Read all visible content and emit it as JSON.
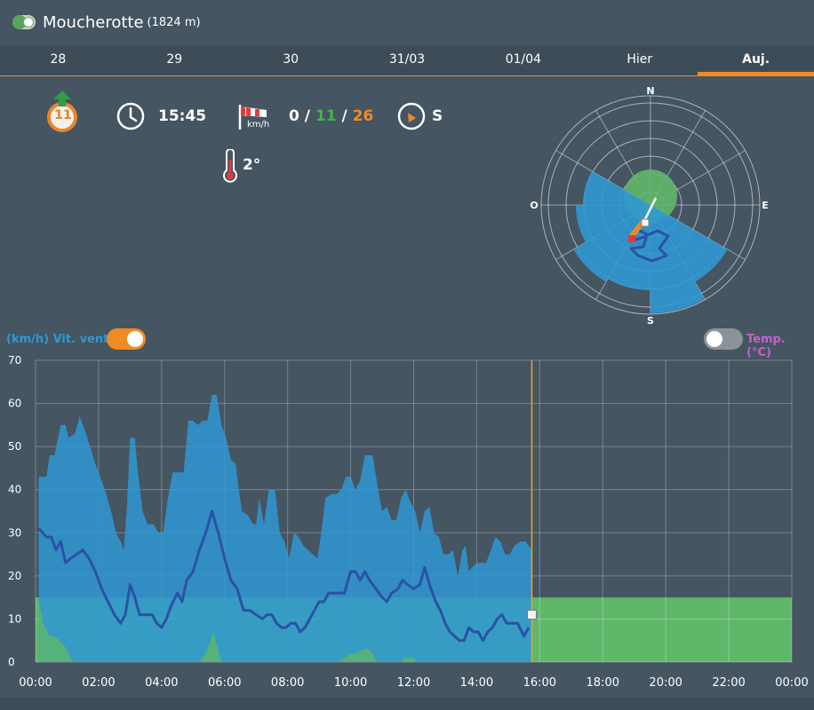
{
  "header": {
    "station_name": "Moucherotte",
    "altitude": "(1824 m)"
  },
  "tabs": [
    {
      "label": "28"
    },
    {
      "label": "29"
    },
    {
      "label": "30"
    },
    {
      "label": "31/03"
    },
    {
      "label": "01/04"
    },
    {
      "label": "Hier"
    },
    {
      "label": "Auj."
    }
  ],
  "active_tab": 6,
  "info": {
    "badge_value": "11",
    "time": "15:45",
    "wind_unit": "km/h",
    "wind_min": "0",
    "wind_sep1": "/",
    "wind_avg": "11",
    "wind_sep2": "/",
    "wind_max": "26",
    "direction": "S",
    "temperature": "2°"
  },
  "rose": {
    "n": "N",
    "e": "E",
    "s": "S",
    "o": "O"
  },
  "toggles": {
    "wind_label": "(km/h) Vit. vent",
    "wind_on": true,
    "temp_label": "Temp. (°C)",
    "temp_on": false
  },
  "colors": {
    "wind": "#2f98d3",
    "avg_line": "#2a52a6",
    "zone": "#5fb76a",
    "now": "#f0a030",
    "bg": "#455561"
  },
  "chart_data": {
    "type": "area",
    "ylim": [
      0,
      70
    ],
    "yticks": [
      "0",
      "10",
      "20",
      "30",
      "40",
      "50",
      "60",
      "70"
    ],
    "xlim": [
      0,
      24
    ],
    "xticks": [
      "00:00",
      "02:00",
      "04:00",
      "06:00",
      "08:00",
      "10:00",
      "12:00",
      "14:00",
      "16:00",
      "18:00",
      "20:00",
      "22:00",
      "00:00"
    ],
    "now_hour": 15.75,
    "green_band": [
      0,
      15
    ],
    "max_series": [
      [
        0.1,
        43
      ],
      [
        0.35,
        43
      ],
      [
        0.45,
        48
      ],
      [
        0.6,
        48
      ],
      [
        0.8,
        55
      ],
      [
        0.95,
        55
      ],
      [
        1.05,
        52
      ],
      [
        1.25,
        53
      ],
      [
        1.4,
        57
      ],
      [
        1.6,
        53
      ],
      [
        1.9,
        46
      ],
      [
        2.2,
        40
      ],
      [
        2.4,
        35
      ],
      [
        2.55,
        30
      ],
      [
        2.7,
        28
      ],
      [
        2.8,
        26
      ],
      [
        2.9,
        36
      ],
      [
        3.0,
        52
      ],
      [
        3.15,
        52
      ],
      [
        3.25,
        44
      ],
      [
        3.4,
        35
      ],
      [
        3.55,
        32
      ],
      [
        3.75,
        32
      ],
      [
        3.9,
        30
      ],
      [
        4.05,
        30
      ],
      [
        4.2,
        38
      ],
      [
        4.35,
        44
      ],
      [
        4.5,
        44
      ],
      [
        4.7,
        44
      ],
      [
        4.85,
        56
      ],
      [
        5.0,
        56
      ],
      [
        5.15,
        55
      ],
      [
        5.3,
        56
      ],
      [
        5.45,
        56
      ],
      [
        5.6,
        62
      ],
      [
        5.75,
        62
      ],
      [
        5.9,
        55
      ],
      [
        6.05,
        52
      ],
      [
        6.2,
        47
      ],
      [
        6.35,
        46
      ],
      [
        6.45,
        40
      ],
      [
        6.55,
        35
      ],
      [
        6.75,
        34
      ],
      [
        6.9,
        32
      ],
      [
        7.0,
        32
      ],
      [
        7.1,
        38
      ],
      [
        7.25,
        32
      ],
      [
        7.4,
        40
      ],
      [
        7.6,
        40
      ],
      [
        7.75,
        30
      ],
      [
        7.9,
        28
      ],
      [
        8.05,
        24
      ],
      [
        8.2,
        30
      ],
      [
        8.35,
        29
      ],
      [
        8.5,
        27
      ],
      [
        8.65,
        26
      ],
      [
        8.8,
        25
      ],
      [
        8.95,
        24
      ],
      [
        9.1,
        32
      ],
      [
        9.2,
        38
      ],
      [
        9.4,
        39
      ],
      [
        9.55,
        39
      ],
      [
        9.7,
        40
      ],
      [
        9.85,
        43
      ],
      [
        10.0,
        43
      ],
      [
        10.15,
        40
      ],
      [
        10.3,
        42
      ],
      [
        10.45,
        48
      ],
      [
        10.7,
        48
      ],
      [
        10.85,
        41
      ],
      [
        11.0,
        35
      ],
      [
        11.15,
        36
      ],
      [
        11.3,
        33
      ],
      [
        11.45,
        33
      ],
      [
        11.6,
        38
      ],
      [
        11.75,
        40
      ],
      [
        11.9,
        37
      ],
      [
        12.05,
        35
      ],
      [
        12.2,
        30
      ],
      [
        12.35,
        35
      ],
      [
        12.5,
        36
      ],
      [
        12.65,
        30
      ],
      [
        12.8,
        29
      ],
      [
        12.95,
        25
      ],
      [
        13.1,
        25
      ],
      [
        13.25,
        26
      ],
      [
        13.4,
        20
      ],
      [
        13.55,
        26
      ],
      [
        13.65,
        27
      ],
      [
        13.75,
        21
      ],
      [
        13.85,
        22
      ],
      [
        14.0,
        23
      ],
      [
        14.15,
        23
      ],
      [
        14.3,
        23
      ],
      [
        14.45,
        26
      ],
      [
        14.6,
        29
      ],
      [
        14.75,
        28
      ],
      [
        14.9,
        25
      ],
      [
        15.05,
        25
      ],
      [
        15.2,
        27
      ],
      [
        15.4,
        28
      ],
      [
        15.55,
        28
      ],
      [
        15.75,
        26
      ]
    ],
    "avg_series": [
      [
        0.1,
        31
      ],
      [
        0.35,
        29
      ],
      [
        0.5,
        29
      ],
      [
        0.65,
        26
      ],
      [
        0.8,
        28
      ],
      [
        0.95,
        23
      ],
      [
        1.1,
        24
      ],
      [
        1.3,
        25
      ],
      [
        1.5,
        26
      ],
      [
        1.7,
        24
      ],
      [
        1.9,
        21
      ],
      [
        2.1,
        17
      ],
      [
        2.3,
        14
      ],
      [
        2.5,
        11
      ],
      [
        2.7,
        9
      ],
      [
        2.85,
        11
      ],
      [
        3.0,
        18
      ],
      [
        3.15,
        15
      ],
      [
        3.3,
        11
      ],
      [
        3.5,
        11
      ],
      [
        3.7,
        11
      ],
      [
        3.85,
        9
      ],
      [
        4.0,
        8
      ],
      [
        4.15,
        10
      ],
      [
        4.3,
        13
      ],
      [
        4.5,
        16
      ],
      [
        4.65,
        14
      ],
      [
        4.8,
        19
      ],
      [
        5.0,
        21
      ],
      [
        5.2,
        26
      ],
      [
        5.4,
        30
      ],
      [
        5.6,
        35
      ],
      [
        5.8,
        30
      ],
      [
        6.0,
        24
      ],
      [
        6.2,
        19
      ],
      [
        6.4,
        17
      ],
      [
        6.6,
        12
      ],
      [
        6.8,
        12
      ],
      [
        7.0,
        11
      ],
      [
        7.2,
        10
      ],
      [
        7.35,
        11
      ],
      [
        7.5,
        11
      ],
      [
        7.65,
        9
      ],
      [
        7.8,
        8
      ],
      [
        7.95,
        8
      ],
      [
        8.1,
        9
      ],
      [
        8.25,
        9
      ],
      [
        8.4,
        7
      ],
      [
        8.55,
        8
      ],
      [
        8.7,
        10
      ],
      [
        8.85,
        12
      ],
      [
        9.0,
        14
      ],
      [
        9.15,
        14
      ],
      [
        9.3,
        16
      ],
      [
        9.45,
        16
      ],
      [
        9.6,
        16
      ],
      [
        9.8,
        16
      ],
      [
        10.0,
        21
      ],
      [
        10.15,
        21
      ],
      [
        10.3,
        19
      ],
      [
        10.45,
        21
      ],
      [
        10.6,
        19
      ],
      [
        10.8,
        17
      ],
      [
        11.0,
        15
      ],
      [
        11.15,
        14
      ],
      [
        11.3,
        16
      ],
      [
        11.5,
        17
      ],
      [
        11.65,
        19
      ],
      [
        11.8,
        18
      ],
      [
        12.0,
        17
      ],
      [
        12.2,
        18
      ],
      [
        12.35,
        22
      ],
      [
        12.5,
        18
      ],
      [
        12.7,
        14
      ],
      [
        12.85,
        12
      ],
      [
        13.0,
        9
      ],
      [
        13.15,
        7
      ],
      [
        13.3,
        6
      ],
      [
        13.45,
        5
      ],
      [
        13.6,
        5
      ],
      [
        13.75,
        8
      ],
      [
        13.9,
        7
      ],
      [
        14.05,
        7
      ],
      [
        14.2,
        5
      ],
      [
        14.35,
        7
      ],
      [
        14.5,
        8
      ],
      [
        14.65,
        10
      ],
      [
        14.8,
        11
      ],
      [
        14.95,
        9
      ],
      [
        15.1,
        9
      ],
      [
        15.3,
        9
      ],
      [
        15.5,
        6
      ],
      [
        15.65,
        8
      ]
    ],
    "min_series": [
      [
        0.1,
        14
      ],
      [
        0.25,
        9
      ],
      [
        0.45,
        6
      ],
      [
        0.6,
        6
      ],
      [
        0.75,
        5
      ],
      [
        0.9,
        4
      ],
      [
        1.05,
        2
      ],
      [
        1.2,
        0
      ],
      [
        5.2,
        0
      ],
      [
        5.4,
        2
      ],
      [
        5.5,
        4
      ],
      [
        5.65,
        7
      ],
      [
        5.75,
        4
      ],
      [
        5.9,
        0
      ],
      [
        9.6,
        0
      ],
      [
        9.8,
        1
      ],
      [
        10.0,
        2
      ],
      [
        10.2,
        2
      ],
      [
        10.4,
        3
      ],
      [
        10.55,
        3
      ],
      [
        10.7,
        2
      ],
      [
        10.85,
        0
      ],
      [
        11.6,
        0
      ],
      [
        11.7,
        1
      ],
      [
        11.85,
        1
      ],
      [
        12.0,
        1
      ],
      [
        12.1,
        0
      ],
      [
        15.75,
        0
      ]
    ]
  }
}
